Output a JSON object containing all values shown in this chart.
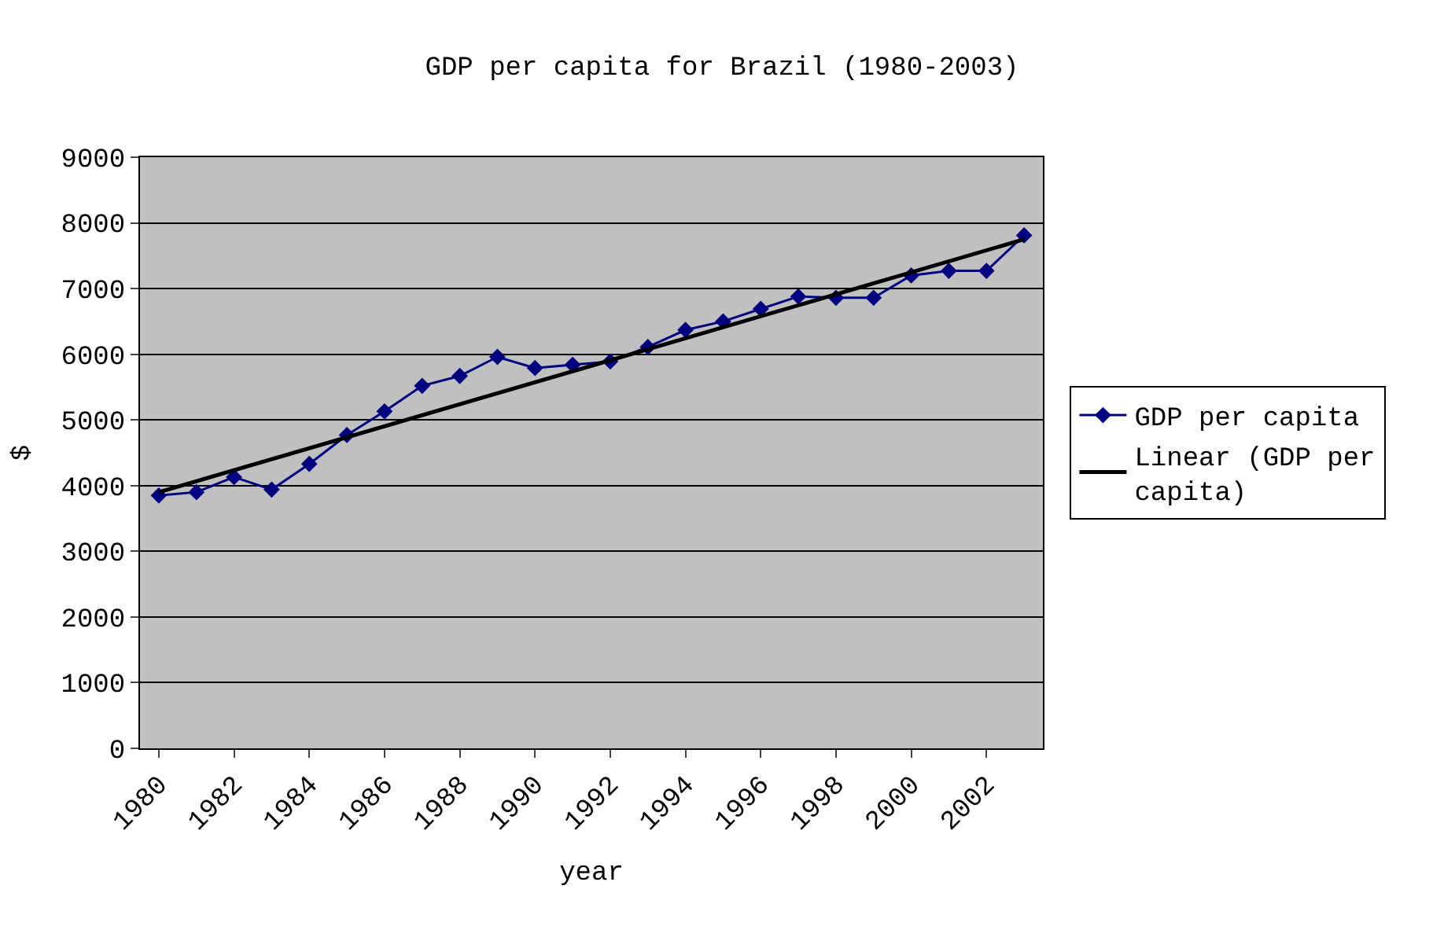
{
  "chart_data": {
    "type": "line",
    "title": "GDP per capita for Brazil (1980-2003)",
    "xlabel": "year",
    "ylabel": "$",
    "x": [
      1980,
      1981,
      1982,
      1983,
      1984,
      1985,
      1986,
      1987,
      1988,
      1989,
      1990,
      1991,
      1992,
      1993,
      1994,
      1995,
      1996,
      1997,
      1998,
      1999,
      2000,
      2001,
      2002,
      2003
    ],
    "series": [
      {
        "name": "GDP per capita",
        "color": "#000080",
        "marker": "diamond",
        "values": [
          3850,
          3900,
          4130,
          3940,
          4330,
          4770,
          5130,
          5520,
          5670,
          5960,
          5790,
          5840,
          5890,
          6110,
          6370,
          6500,
          6690,
          6880,
          6860,
          6860,
          7200,
          7270,
          7270,
          7810
        ]
      },
      {
        "name": "Linear (GDP per capita)",
        "color": "#000000",
        "type": "line",
        "marker": "none",
        "x": [
          1980,
          2003
        ],
        "values": [
          3900,
          7750
        ]
      }
    ],
    "xlim": [
      1979.5,
      2003.5
    ],
    "xticks": [
      1980,
      1982,
      1984,
      1986,
      1988,
      1990,
      1992,
      1994,
      1996,
      1998,
      2000,
      2002
    ],
    "ylim": [
      0,
      9000
    ],
    "yticks": [
      0,
      1000,
      2000,
      3000,
      4000,
      5000,
      6000,
      7000,
      8000,
      9000
    ],
    "grid": "y",
    "legend": "right"
  }
}
